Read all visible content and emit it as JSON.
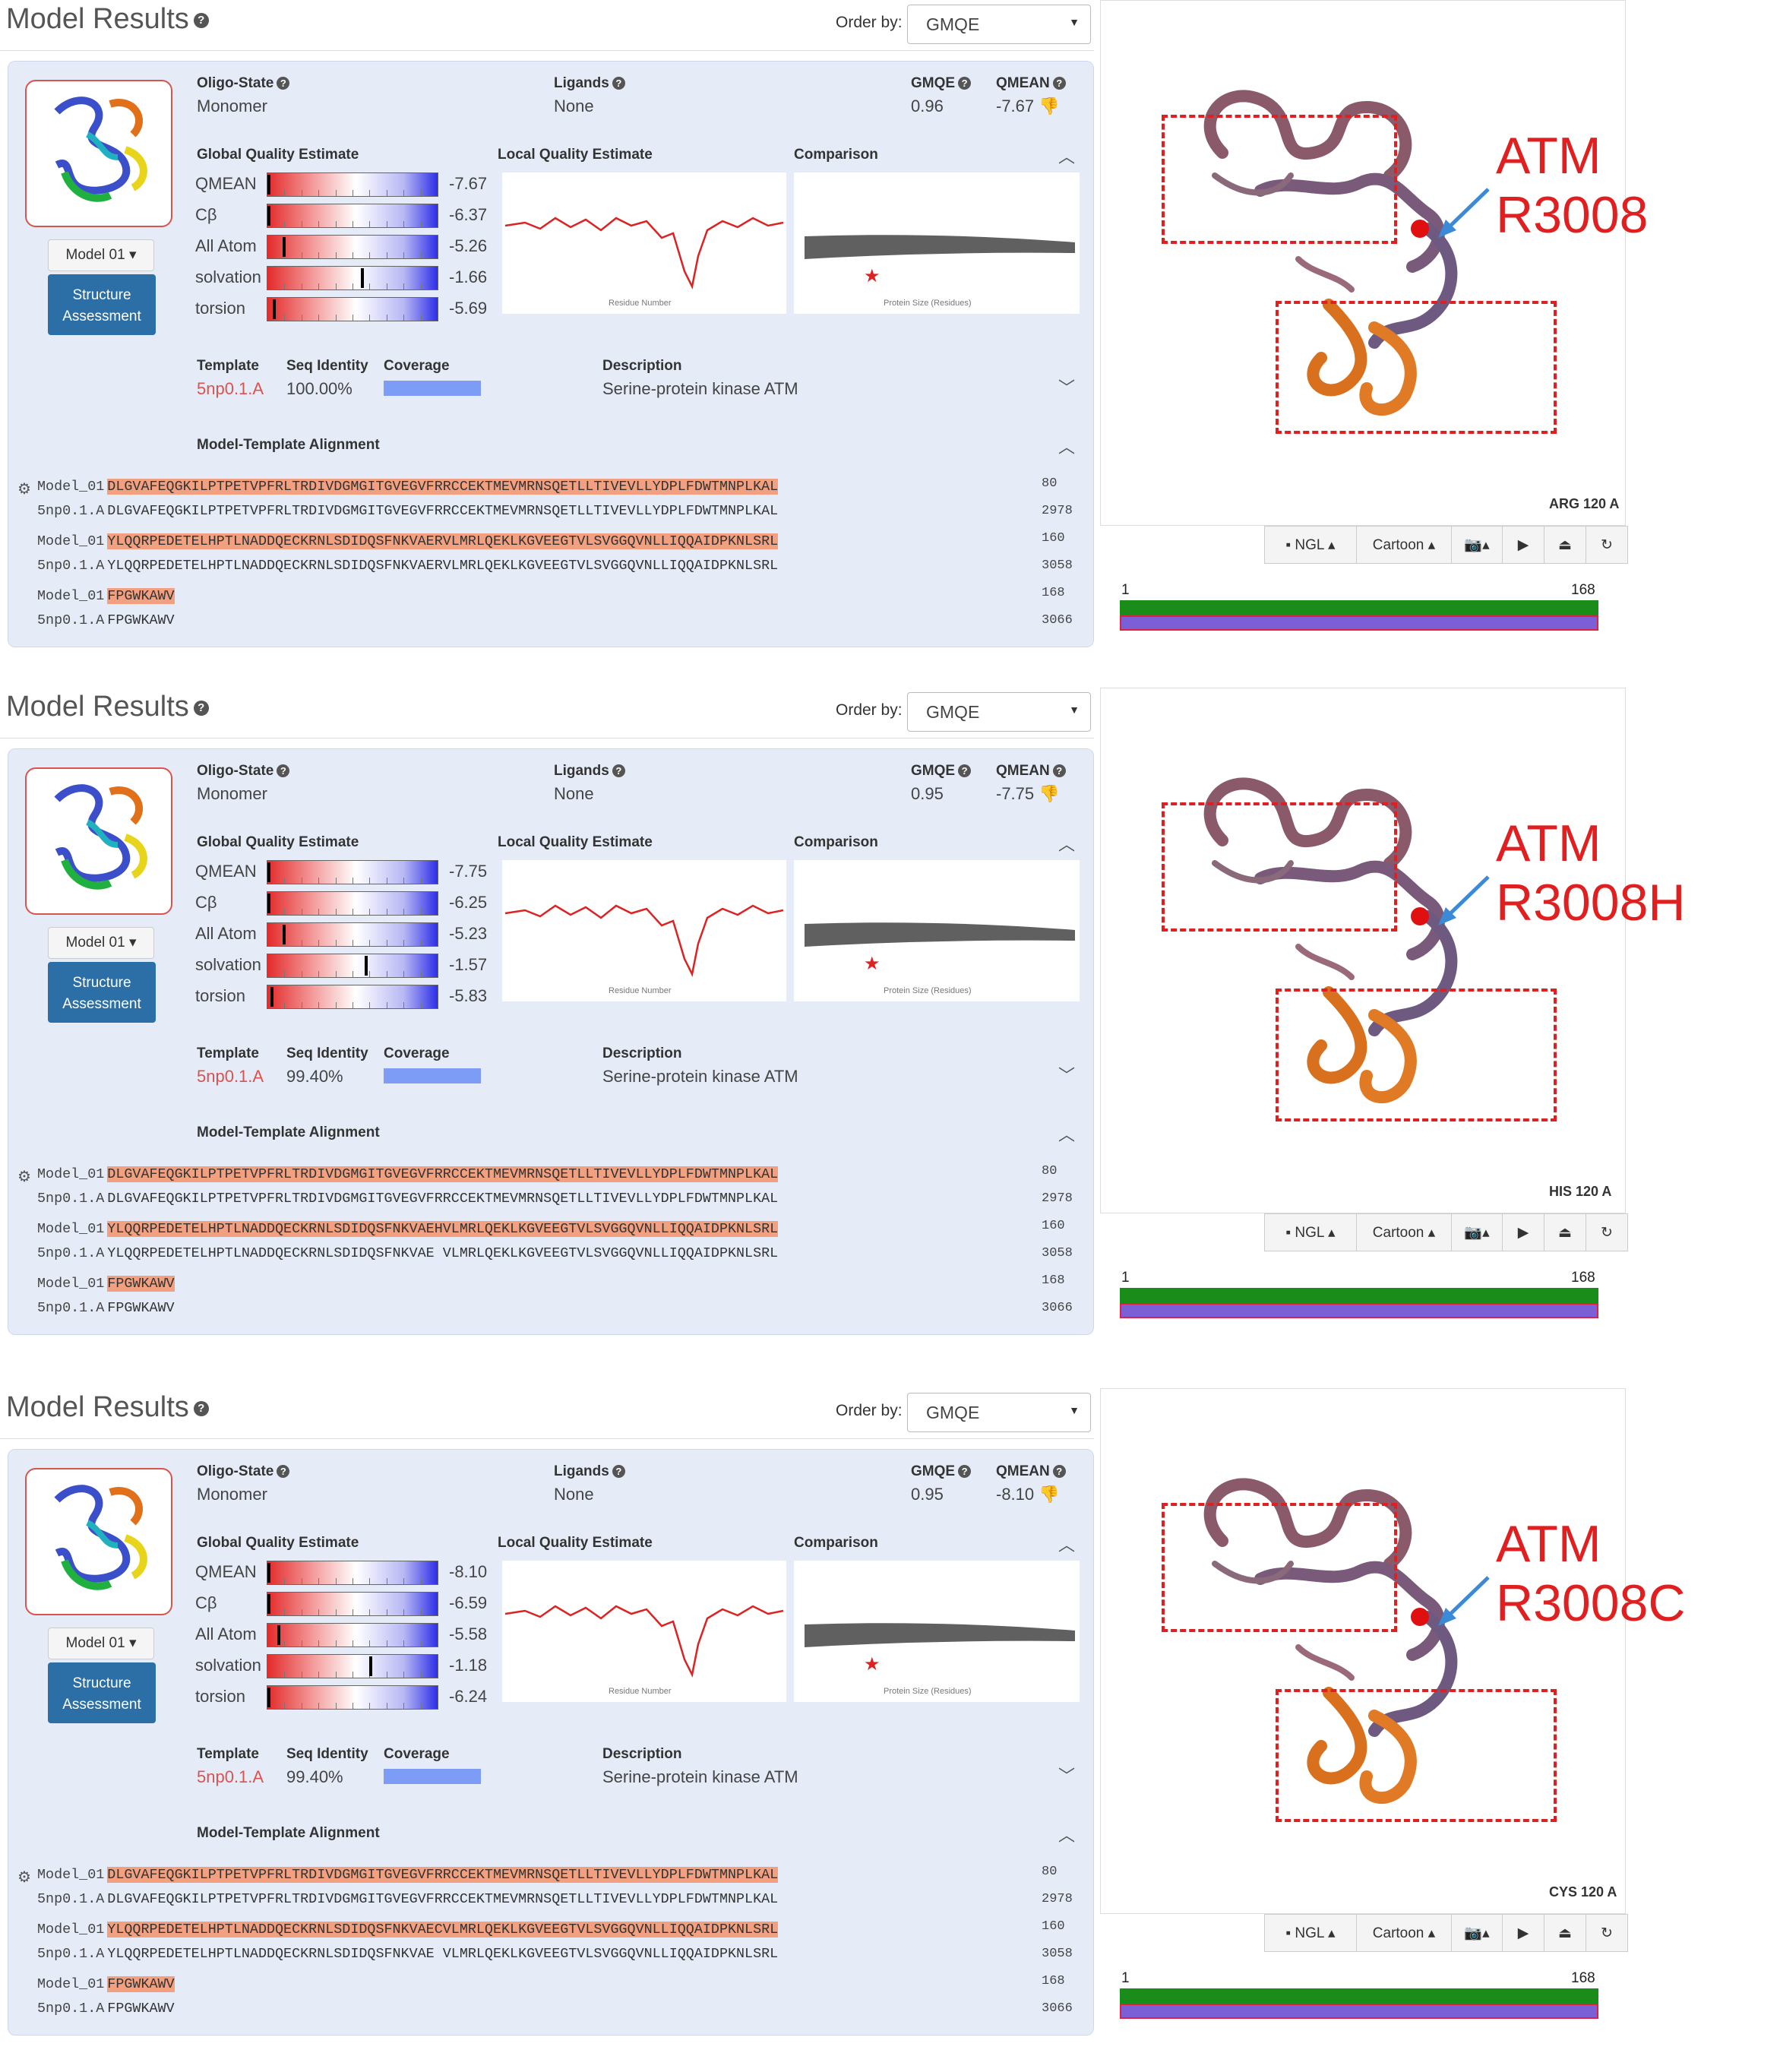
{
  "sections": [
    {
      "header": "Model Results",
      "order_label": "Order by:",
      "order_value": "GMQE",
      "oligo_label": "Oligo-State",
      "oligo_value": "Monomer",
      "ligands_label": "Ligands",
      "ligands_value": "None",
      "gmqe_label": "GMQE",
      "gmqe_value": "0.96",
      "qmean_label": "QMEAN",
      "qmean_value": "-7.67",
      "model_button": "Model 01",
      "sa_button": [
        "Structure",
        "Assessment"
      ],
      "gqe_title": "Global Quality Estimate",
      "lqe_title": "Local Quality Estimate",
      "comp_title": "Comparison",
      "lqe_axis": "Residue Number",
      "comp_axis": "Protein Size (Residues)",
      "quality": [
        {
          "name": "QMEAN",
          "value": "-7.67",
          "level": 0.0
        },
        {
          "name": "Cβ",
          "value": "-6.37",
          "level": 0.0
        },
        {
          "name": "All Atom",
          "value": "-5.26",
          "level": 0.09
        },
        {
          "name": "solvation",
          "value": "-1.66",
          "level": 0.55
        },
        {
          "name": "torsion",
          "value": "-5.69",
          "level": 0.03
        }
      ],
      "template_label": "Template",
      "template_value": "5np0.1.A",
      "seqid_label": "Seq Identity",
      "seqid_value": "100.00%",
      "coverage_label": "Coverage",
      "description_label": "Description",
      "description_value": "Serine-protein kinase ATM",
      "alignment_title": "Model-Template Alignment",
      "alignment": [
        {
          "name": "Model_01",
          "seq": "DLGVAFEQGKILPTPETVPFRLTRDIVDGMGITGVEGVFRRCCEKTMEVMRNSQETLLTIVEVLLYDPLFDWTMNPLKAL",
          "num": "80"
        },
        {
          "name": "5np0.1.A",
          "seq": "DLGVAFEQGKILPTPETVPFRLTRDIVDGMGITGVEGVFRRCCEKTMEVMRNSQETLLTIVEVLLYDPLFDWTMNPLKAL",
          "num": "2978"
        },
        {
          "name": "Model_01",
          "seq": "YLQQRPEDETELHPTLNADDQECKRNLSDIDQSFNKVAERVLMRLQEKLKGVEEGTVLSVGGQVNLLIQQAIDPKNLSRL",
          "num": "160"
        },
        {
          "name": "5np0.1.A",
          "seq": "YLQQRPEDETELHPTLNADDQECKRNLSDIDQSFNKVAERVLMRLQEKLKGVEEGTVLSVGGQVNLLIQQAIDPKNLSRL",
          "num": "3058"
        },
        {
          "name": "Model_01",
          "seq": "FPGWKAWV",
          "num": "168"
        },
        {
          "name": "5np0.1.A",
          "seq": "FPGWKAWV",
          "num": "3066"
        }
      ],
      "variant_label": "ATM R3008",
      "residue_label": "ARG 120 A",
      "viewer_toolbar": [
        "NGL",
        "Cartoon"
      ],
      "seq_start": "1",
      "seq_end": "168"
    },
    {
      "header": "Model Results",
      "order_label": "Order by:",
      "order_value": "GMQE",
      "oligo_label": "Oligo-State",
      "oligo_value": "Monomer",
      "ligands_label": "Ligands",
      "ligands_value": "None",
      "gmqe_label": "GMQE",
      "gmqe_value": "0.95",
      "qmean_label": "QMEAN",
      "qmean_value": "-7.75",
      "model_button": "Model 01",
      "sa_button": [
        "Structure",
        "Assessment"
      ],
      "gqe_title": "Global Quality Estimate",
      "lqe_title": "Local Quality Estimate",
      "comp_title": "Comparison",
      "lqe_axis": "Residue Number",
      "comp_axis": "Protein Size (Residues)",
      "quality": [
        {
          "name": "QMEAN",
          "value": "-7.75",
          "level": 0.0
        },
        {
          "name": "Cβ",
          "value": "-6.25",
          "level": 0.0
        },
        {
          "name": "All Atom",
          "value": "-5.23",
          "level": 0.09
        },
        {
          "name": "solvation",
          "value": "-1.57",
          "level": 0.57
        },
        {
          "name": "torsion",
          "value": "-5.83",
          "level": 0.02
        }
      ],
      "template_label": "Template",
      "template_value": "5np0.1.A",
      "seqid_label": "Seq Identity",
      "seqid_value": "99.40%",
      "coverage_label": "Coverage",
      "description_label": "Description",
      "description_value": "Serine-protein kinase ATM",
      "alignment_title": "Model-Template Alignment",
      "alignment": [
        {
          "name": "Model_01",
          "seq": "DLGVAFEQGKILPTPETVPFRLTRDIVDGMGITGVEGVFRRCCEKTMEVMRNSQETLLTIVEVLLYDPLFDWTMNPLKAL",
          "num": "80"
        },
        {
          "name": "5np0.1.A",
          "seq": "DLGVAFEQGKILPTPETVPFRLTRDIVDGMGITGVEGVFRRCCEKTMEVMRNSQETLLTIVEVLLYDPLFDWTMNPLKAL",
          "num": "2978"
        },
        {
          "name": "Model_01",
          "seq": "YLQQRPEDETELHPTLNADDQECKRNLSDIDQSFNKVAEHVLMRLQEKLKGVEEGTVLSVGGQVNLLIQQAIDPKNLSRL",
          "num": "160"
        },
        {
          "name": "5np0.1.A",
          "seq": "YLQQRPEDETELHPTLNADDQECKRNLSDIDQSFNKVAE VLMRLQEKLKGVEEGTVLSVGGQVNLLIQQAIDPKNLSRL",
          "num": "3058"
        },
        {
          "name": "Model_01",
          "seq": "FPGWKAWV",
          "num": "168"
        },
        {
          "name": "5np0.1.A",
          "seq": "FPGWKAWV",
          "num": "3066"
        }
      ],
      "variant_label": "ATM R3008H",
      "residue_label": "HIS 120 A",
      "viewer_toolbar": [
        "NGL",
        "Cartoon"
      ],
      "seq_start": "1",
      "seq_end": "168"
    },
    {
      "header": "Model Results",
      "order_label": "Order by:",
      "order_value": "GMQE",
      "oligo_label": "Oligo-State",
      "oligo_value": "Monomer",
      "ligands_label": "Ligands",
      "ligands_value": "None",
      "gmqe_label": "GMQE",
      "gmqe_value": "0.95",
      "qmean_label": "QMEAN",
      "qmean_value": "-8.10",
      "model_button": "Model 01",
      "sa_button": [
        "Structure",
        "Assessment"
      ],
      "gqe_title": "Global Quality Estimate",
      "lqe_title": "Local Quality Estimate",
      "comp_title": "Comparison",
      "lqe_axis": "Residue Number",
      "comp_axis": "Protein Size (Residues)",
      "quality": [
        {
          "name": "QMEAN",
          "value": "-8.10",
          "level": 0.0
        },
        {
          "name": "Cβ",
          "value": "-6.59",
          "level": 0.0
        },
        {
          "name": "All Atom",
          "value": "-5.58",
          "level": 0.06
        },
        {
          "name": "solvation",
          "value": "-1.18",
          "level": 0.6
        },
        {
          "name": "torsion",
          "value": "-6.24",
          "level": 0.0
        }
      ],
      "template_label": "Template",
      "template_value": "5np0.1.A",
      "seqid_label": "Seq Identity",
      "seqid_value": "99.40%",
      "coverage_label": "Coverage",
      "description_label": "Description",
      "description_value": "Serine-protein kinase ATM",
      "alignment_title": "Model-Template Alignment",
      "alignment": [
        {
          "name": "Model_01",
          "seq": "DLGVAFEQGKILPTPETVPFRLTRDIVDGMGITGVEGVFRRCCEKTMEVMRNSQETLLTIVEVLLYDPLFDWTMNPLKAL",
          "num": "80"
        },
        {
          "name": "5np0.1.A",
          "seq": "DLGVAFEQGKILPTPETVPFRLTRDIVDGMGITGVEGVFRRCCEKTMEVMRNSQETLLTIVEVLLYDPLFDWTMNPLKAL",
          "num": "2978"
        },
        {
          "name": "Model_01",
          "seq": "YLQQRPEDETELHPTLNADDQECKRNLSDIDQSFNKVAECVLMRLQEKLKGVEEGTVLSVGGQVNLLIQQAIDPKNLSRL",
          "num": "160"
        },
        {
          "name": "5np0.1.A",
          "seq": "YLQQRPEDETELHPTLNADDQECKRNLSDIDQSFNKVAE VLMRLQEKLKGVEEGTVLSVGGQVNLLIQQAIDPKNLSRL",
          "num": "3058"
        },
        {
          "name": "Model_01",
          "seq": "FPGWKAWV",
          "num": "168"
        },
        {
          "name": "5np0.1.A",
          "seq": "FPGWKAWV",
          "num": "3066"
        }
      ],
      "variant_label": "ATM R3008C",
      "residue_label": "CYS 120 A",
      "viewer_toolbar": [
        "NGL",
        "Cartoon"
      ],
      "seq_start": "1",
      "seq_end": "168"
    }
  ],
  "colors": {
    "panel": "#e5ecf8",
    "accent_red": "#d9534f",
    "button_blue": "#2c6fa6",
    "annotation_red": "#e02020",
    "coverage": "#7c9cf6",
    "seq_green": "#1a8c1a",
    "seq_purple": "#7b5fd6"
  }
}
